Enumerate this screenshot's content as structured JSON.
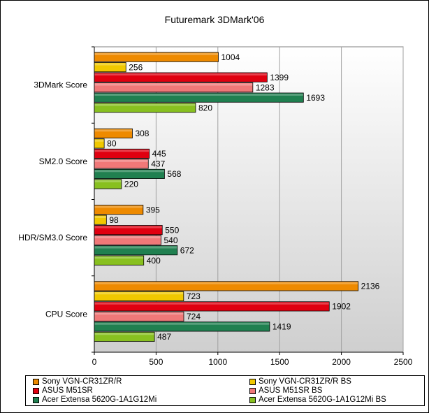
{
  "chart_data": {
    "type": "bar",
    "orientation": "horizontal",
    "title": "Futuremark 3DMark'06",
    "categories": [
      "3DMark Score",
      "SM2.0 Score",
      "HDR/SM3.0 Score",
      "CPU Score"
    ],
    "series": [
      {
        "name": "Sony VGN-CR31ZR/R",
        "color": "#ee8a00",
        "values": [
          1004,
          308,
          395,
          2136
        ]
      },
      {
        "name": "Sony VGN-CR31ZR/R BS",
        "color": "#f0c800",
        "values": [
          256,
          80,
          98,
          723
        ]
      },
      {
        "name": "ASUS M51SR",
        "color": "#e00010",
        "values": [
          1399,
          445,
          550,
          1902
        ]
      },
      {
        "name": "ASUS M51SR BS",
        "color": "#f07878",
        "values": [
          1283,
          437,
          540,
          724
        ]
      },
      {
        "name": "Acer Extensa 5620G-1A1G12Mi",
        "color": "#208050",
        "values": [
          1693,
          568,
          672,
          1419
        ]
      },
      {
        "name": "Acer Extensa 5620G-1A1G12Mi BS",
        "color": "#88c020",
        "values": [
          820,
          220,
          400,
          487
        ]
      }
    ],
    "xlim": [
      0,
      2500
    ],
    "xticks": [
      0,
      500,
      1000,
      1500,
      2000,
      2500
    ],
    "grid": true,
    "legend_position": "bottom"
  }
}
